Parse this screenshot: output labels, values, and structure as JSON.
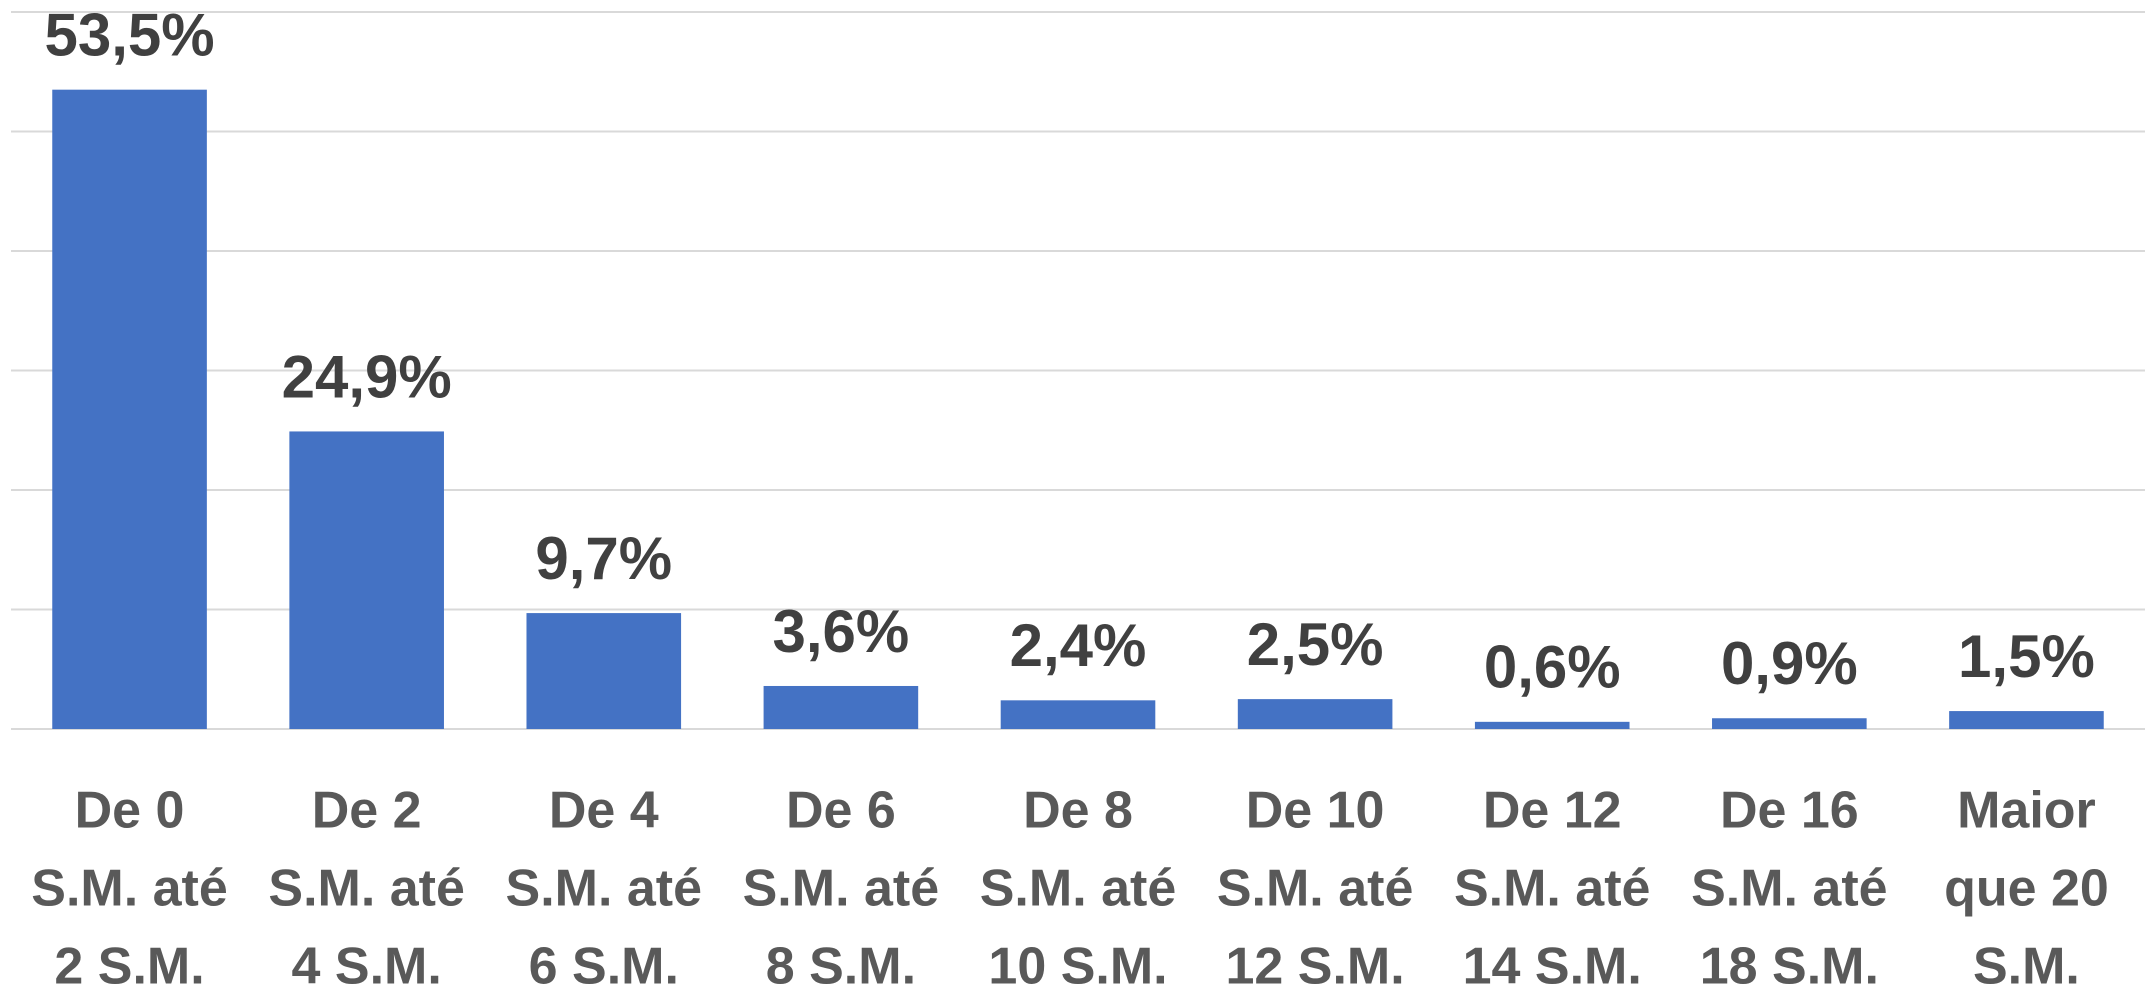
{
  "chart_data": {
    "type": "bar",
    "categories": [
      [
        "De 0",
        "S.M. até",
        "2 S.M."
      ],
      [
        "De 2",
        "S.M. até",
        "4 S.M."
      ],
      [
        "De 4",
        "S.M. até",
        "6 S.M."
      ],
      [
        "De 6",
        "S.M. até",
        "8 S.M."
      ],
      [
        "De 8",
        "S.M. até",
        "10 S.M."
      ],
      [
        "De 10",
        "S.M. até",
        "12 S.M."
      ],
      [
        "De 12",
        "S.M. até",
        "14 S.M."
      ],
      [
        "De 16",
        "S.M. até",
        "18 S.M."
      ],
      [
        "Maior",
        "que 20",
        "S.M."
      ]
    ],
    "values": [
      53.5,
      24.9,
      9.7,
      3.6,
      2.4,
      2.5,
      0.6,
      0.9,
      1.5
    ],
    "value_labels": [
      "53,5%",
      "24,9%",
      "9,7%",
      "3,6%",
      "2,4%",
      "2,5%",
      "0,6%",
      "0,9%",
      "1,5%"
    ],
    "color": "#4472c4",
    "ylim": [
      0,
      60
    ],
    "yticks": [
      0,
      10,
      20,
      30,
      40,
      50,
      60
    ],
    "grid": true
  }
}
